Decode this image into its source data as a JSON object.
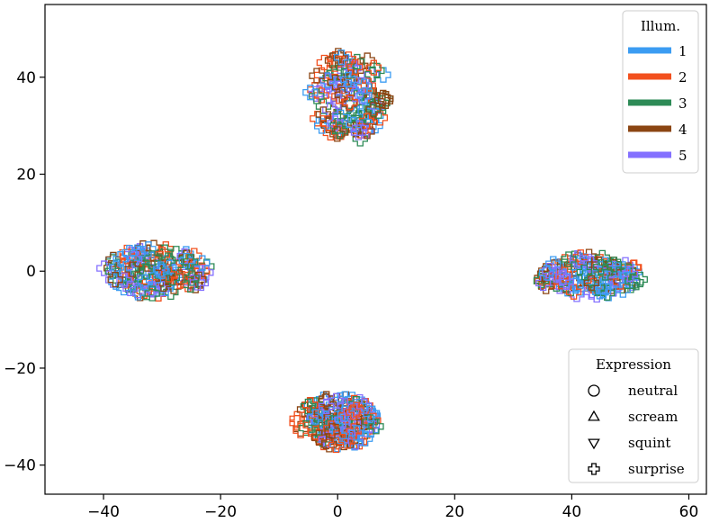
{
  "chart_data": {
    "type": "scatter",
    "title": "",
    "xlabel": "",
    "ylabel": "",
    "xlim": [
      -50,
      63
    ],
    "ylim": [
      -46,
      55
    ],
    "xticks": [
      -40,
      -20,
      0,
      20,
      40,
      60
    ],
    "yticks": [
      -40,
      -20,
      0,
      20,
      40
    ],
    "xtick_labels": [
      "−40",
      "−20",
      "0",
      "20",
      "40",
      "60"
    ],
    "ytick_labels": [
      "−40",
      "−20",
      "0",
      "20",
      "40"
    ],
    "grid": false,
    "illumination_legend": {
      "title": "Illum.",
      "placement": "top-right",
      "entries": [
        {
          "label": "1",
          "color": "#3b9cf2"
        },
        {
          "label": "2",
          "color": "#f2501e"
        },
        {
          "label": "3",
          "color": "#2e8b57"
        },
        {
          "label": "4",
          "color": "#8b4513"
        },
        {
          "label": "5",
          "color": "#8470ff"
        }
      ]
    },
    "expression_legend": {
      "title": "Expression",
      "placement": "bottom-right",
      "entries": [
        {
          "label": "neutral",
          "marker": "circle"
        },
        {
          "label": "scream",
          "marker": "triangle-up"
        },
        {
          "label": "squint",
          "marker": "triangle-down"
        },
        {
          "label": "surprise",
          "marker": "plus"
        }
      ]
    },
    "clusters": [
      {
        "expression": "surprise",
        "center": [
          2,
          36
        ],
        "spread": [
          7,
          9
        ],
        "count": 130
      },
      {
        "expression": "scream",
        "center": [
          -31,
          0
        ],
        "spread": [
          9,
          5
        ],
        "count": 135
      },
      {
        "expression": "squint",
        "center": [
          43,
          -1
        ],
        "spread": [
          9,
          4
        ],
        "count": 130
      },
      {
        "expression": "neutral",
        "center": [
          0,
          -31
        ],
        "spread": [
          7,
          5
        ],
        "count": 150
      }
    ]
  }
}
